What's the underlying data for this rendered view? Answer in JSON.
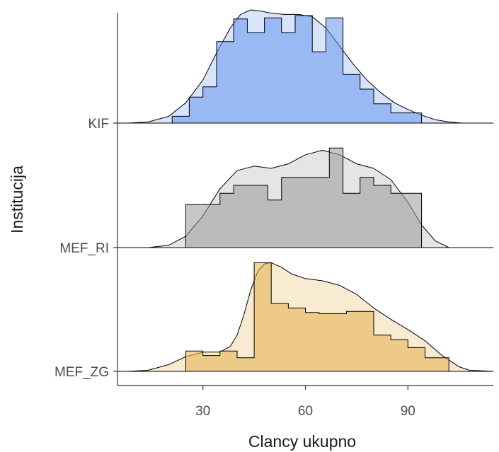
{
  "chart_data": {
    "type": "ridgeline",
    "xlabel": "Clancy ukupno",
    "ylabel": "Institucija",
    "xlim": [
      5,
      115
    ],
    "x_ticks": [
      30,
      60,
      90
    ],
    "grid": false,
    "legend": "none",
    "series": [
      {
        "name": "KIF",
        "color": "#6495ED",
        "histogram": {
          "bins": [
            [
              21,
              26
            ],
            [
              26,
              30
            ],
            [
              30,
              34
            ],
            [
              34,
              39
            ],
            [
              39,
              43
            ],
            [
              43,
              48
            ],
            [
              48,
              53
            ],
            [
              53,
              57
            ],
            [
              57,
              62
            ],
            [
              62,
              66
            ],
            [
              66,
              71
            ],
            [
              71,
              76
            ],
            [
              76,
              80
            ],
            [
              80,
              85
            ],
            [
              85,
              94
            ]
          ],
          "heights": [
            0.06,
            0.23,
            0.32,
            0.72,
            0.92,
            0.8,
            0.93,
            0.8,
            0.95,
            0.63,
            0.93,
            0.43,
            0.3,
            0.17,
            0.09
          ]
        },
        "density": {
          "x": [
            8,
            14,
            20,
            25,
            30,
            34,
            38,
            41,
            44,
            47,
            50,
            54,
            58,
            62,
            66,
            70,
            74,
            78,
            82,
            86,
            90,
            94,
            98,
            102,
            106,
            115
          ],
          "y": [
            0,
            0.01,
            0.06,
            0.18,
            0.38,
            0.62,
            0.84,
            0.96,
            1.0,
            0.99,
            0.97,
            0.96,
            0.96,
            0.94,
            0.84,
            0.68,
            0.52,
            0.38,
            0.27,
            0.18,
            0.12,
            0.07,
            0.03,
            0.01,
            0,
            0
          ]
        }
      },
      {
        "name": "MEF_RI",
        "color": "#999999",
        "histogram": {
          "bins": [
            [
              25,
              35
            ],
            [
              35,
              39
            ],
            [
              39,
              44
            ],
            [
              44,
              49
            ],
            [
              49,
              53
            ],
            [
              53,
              58
            ],
            [
              58,
              63
            ],
            [
              63,
              67
            ],
            [
              67,
              71
            ],
            [
              71,
              76
            ],
            [
              76,
              80
            ],
            [
              80,
              85
            ],
            [
              85,
              89
            ],
            [
              89,
              94
            ]
          ],
          "heights": [
            0.38,
            0.48,
            0.55,
            0.55,
            0.42,
            0.62,
            0.62,
            0.62,
            0.88,
            0.48,
            0.62,
            0.55,
            0.48,
            0.48
          ]
        },
        "density": {
          "x": [
            14,
            20,
            25,
            30,
            35,
            40,
            45,
            50,
            55,
            60,
            65,
            70,
            75,
            80,
            85,
            90,
            94,
            98,
            102,
            115
          ],
          "y": [
            0,
            0.02,
            0.1,
            0.28,
            0.52,
            0.68,
            0.72,
            0.7,
            0.74,
            0.82,
            0.86,
            0.82,
            0.74,
            0.7,
            0.6,
            0.4,
            0.2,
            0.06,
            0,
            0
          ]
        }
      },
      {
        "name": "MEF_ZG",
        "color": "#E6AE4A",
        "histogram": {
          "bins": [
            [
              25,
              30
            ],
            [
              30,
              35
            ],
            [
              35,
              40
            ],
            [
              40,
              45
            ],
            [
              45,
              50
            ],
            [
              50,
              55
            ],
            [
              55,
              60
            ],
            [
              60,
              64
            ],
            [
              64,
              72
            ],
            [
              72,
              80
            ],
            [
              80,
              85
            ],
            [
              85,
              90
            ],
            [
              90,
              95
            ],
            [
              95,
              102
            ]
          ],
          "heights": [
            0.18,
            0.14,
            0.18,
            0.12,
            0.96,
            0.6,
            0.56,
            0.52,
            0.51,
            0.53,
            0.32,
            0.28,
            0.21,
            0.12
          ]
        },
        "density": {
          "x": [
            8,
            14,
            20,
            25,
            30,
            35,
            38,
            40,
            42,
            44,
            46,
            48,
            50,
            53,
            56,
            60,
            65,
            70,
            75,
            80,
            85,
            90,
            95,
            100,
            105,
            108,
            115
          ],
          "y": [
            0,
            0.01,
            0.06,
            0.13,
            0.17,
            0.17,
            0.22,
            0.32,
            0.5,
            0.72,
            0.88,
            0.95,
            0.96,
            0.92,
            0.86,
            0.82,
            0.8,
            0.76,
            0.68,
            0.56,
            0.46,
            0.37,
            0.27,
            0.14,
            0.04,
            0.01,
            0
          ]
        }
      }
    ]
  }
}
